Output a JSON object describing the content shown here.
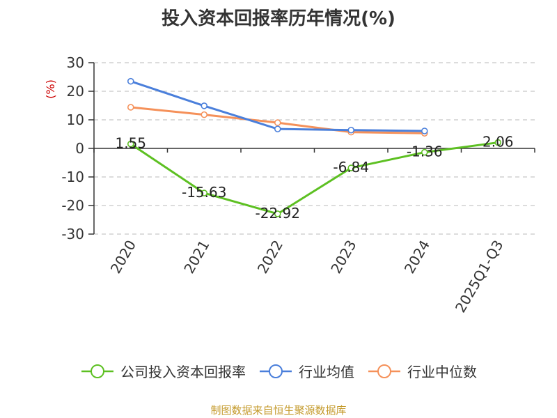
{
  "chart_data": {
    "type": "line",
    "title": "投入资本回报率历年情况(%)",
    "ylabel": "(%)",
    "xlabel": "",
    "ylim": [
      -30,
      30
    ],
    "yticks": [
      30,
      20,
      10,
      0,
      -10,
      -20,
      -30
    ],
    "grid": true,
    "legend_position": "bottom",
    "categories": [
      "2020",
      "2021",
      "2022",
      "2023",
      "2024",
      "2025Q1-Q3"
    ],
    "series": [
      {
        "name": "公司投入资本回报率",
        "color": "#5dc022",
        "values": [
          1.55,
          -15.63,
          -22.92,
          -6.84,
          -1.36,
          2.06
        ],
        "data_labels": [
          "1.55",
          "-15.63",
          "-22.92",
          "-6.84",
          "-1.36",
          "2.06"
        ]
      },
      {
        "name": "行业均值",
        "color": "#4a7fdb",
        "values": [
          23.5,
          14.9,
          6.8,
          6.4,
          6.1,
          null
        ]
      },
      {
        "name": "行业中位数",
        "color": "#f5915a",
        "values": [
          14.4,
          11.8,
          9.0,
          5.7,
          5.3,
          null
        ]
      }
    ]
  },
  "source_note": "制图数据来自恒生聚源数据库"
}
